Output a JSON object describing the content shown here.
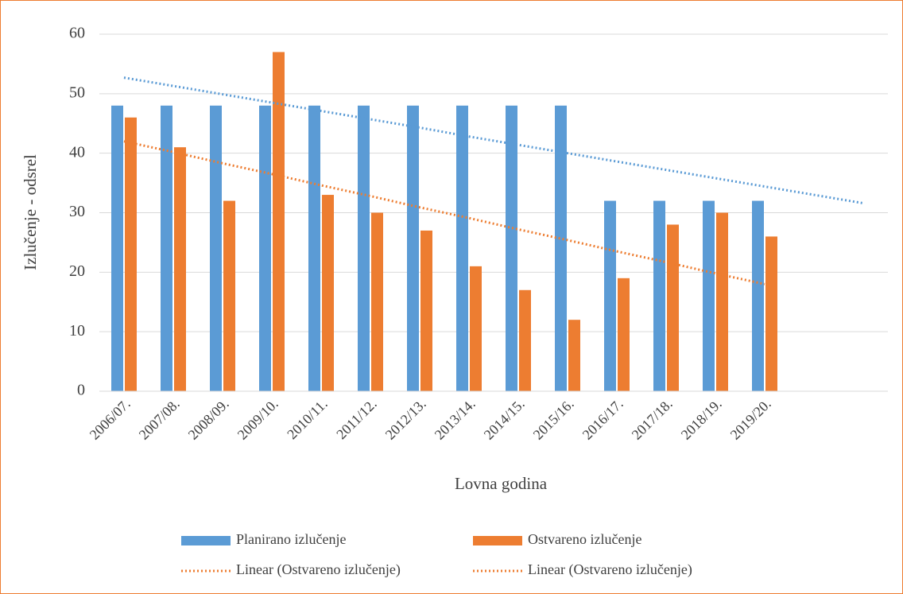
{
  "chart_data": {
    "type": "bar",
    "x_label": "Lovna godina",
    "y_label": "Izlučenje - odsrel",
    "categories": [
      "2006/07.",
      "2007/08.",
      "2008/09.",
      "2009/10.",
      "2010/11.",
      "2011/12.",
      "2012/13.",
      "2013/14.",
      "2014/15.",
      "2015/16.",
      "2016/17.",
      "2017/18.",
      "2018/19.",
      "2019/20.",
      null,
      null
    ],
    "series": [
      {
        "name": "Planirano izlučenje",
        "color": "#5b9bd5",
        "values": [
          48,
          48,
          48,
          48,
          48,
          48,
          48,
          48,
          48,
          48,
          32,
          32,
          32,
          32,
          null,
          null
        ]
      },
      {
        "name": "Ostvareno izlučenje",
        "color": "#ed7d31",
        "values": [
          46,
          41,
          32,
          57,
          33,
          30,
          27,
          21,
          17,
          12,
          19,
          28,
          30,
          26,
          null,
          null
        ]
      }
    ],
    "trendlines": [
      {
        "name": "Linear (Ostvareno izlučenje)",
        "color": "#ed7d31",
        "legend_color": "#ed7d31",
        "values": [
          42,
          40.2,
          38.3,
          36.5,
          34.6,
          32.8,
          30.9,
          29.1,
          27.2,
          25.4,
          23.5,
          21.7,
          19.8,
          18.0,
          null,
          null
        ]
      },
      {
        "name": "Linear (Ostvareno izlučenje)",
        "color": "#5b9bd5",
        "legend_color": "#ed7d31",
        "values": [
          52.7,
          51.3,
          49.9,
          48.5,
          47.1,
          45.7,
          44.3,
          42.8,
          41.4,
          40.0,
          38.6,
          37.2,
          35.8,
          34.4,
          33.0,
          31.6
        ]
      }
    ],
    "ylim": [
      0,
      60
    ],
    "yticks": [
      0,
      10,
      20,
      30,
      40,
      50,
      60
    ],
    "grid": true,
    "legend": "bottom",
    "border_color": "#ed7d31"
  }
}
